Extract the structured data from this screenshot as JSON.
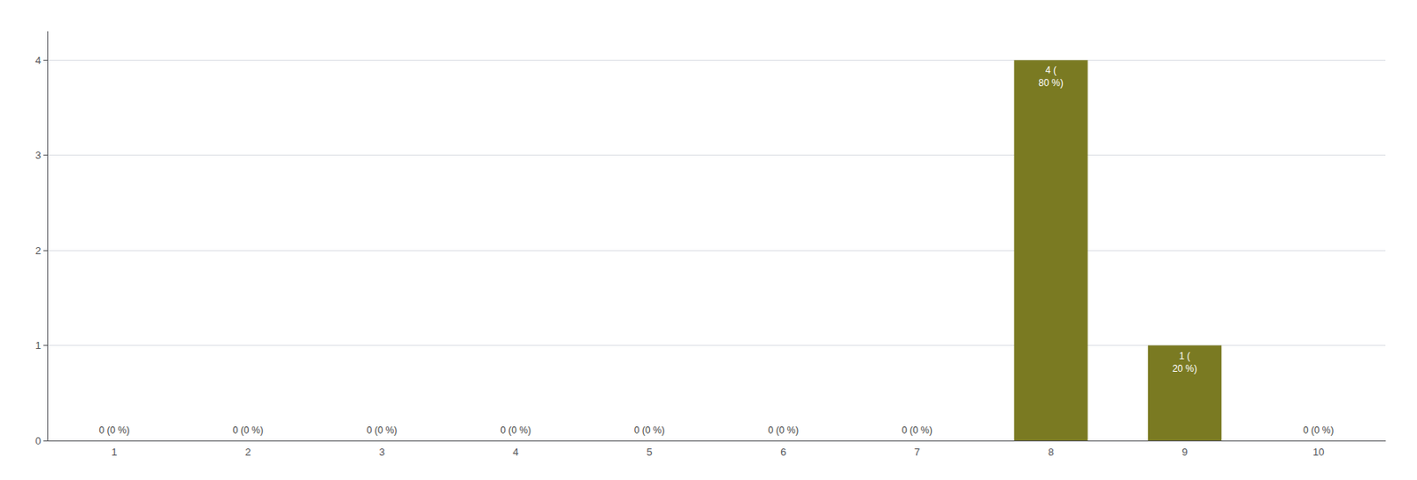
{
  "chart_data": {
    "type": "bar",
    "categories": [
      1,
      2,
      3,
      4,
      5,
      6,
      7,
      8,
      9,
      10
    ],
    "values": [
      0,
      0,
      0,
      0,
      0,
      0,
      0,
      4,
      1,
      0
    ],
    "value_labels": [
      "0 (0 %)",
      "0 (0 %)",
      "0 (0 %)",
      "0 (0 %)",
      "0 (0 %)",
      "0 (0 %)",
      "0 (0 %)",
      "4 (\n80 %)",
      "1 (\n20 %)",
      "0 (0 %)"
    ],
    "data_labels": true,
    "color": "#7a7a22",
    "ylim": [
      0,
      4.3
    ],
    "yticks": [
      0,
      1,
      2,
      3,
      4
    ],
    "grid": true
  }
}
